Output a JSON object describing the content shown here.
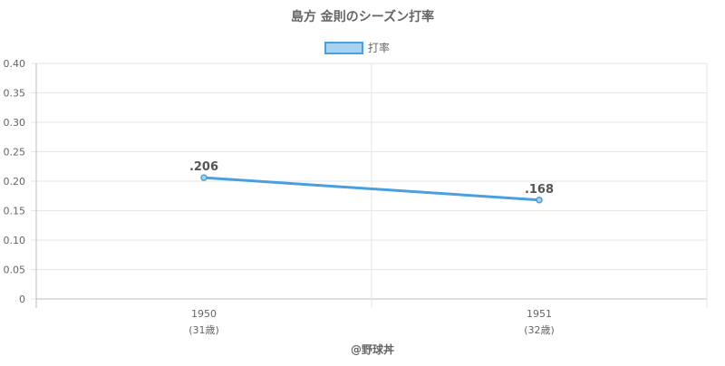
{
  "chart_data": {
    "type": "line",
    "title": "島方 金則のシーズン打率",
    "legend": {
      "position": "top",
      "label": "打率"
    },
    "categories": [
      "1950",
      "1951"
    ],
    "category_sublabels": [
      "(31歳)",
      "(32歳)"
    ],
    "series": [
      {
        "name": "打率",
        "values": [
          0.206,
          0.168
        ],
        "data_labels": [
          ".206",
          ".168"
        ]
      }
    ],
    "y_ticks": [
      "0.40",
      "0.35",
      "0.30",
      "0.25",
      "0.20",
      "0.15",
      "0.10",
      "0.05",
      "0"
    ],
    "ylim": [
      0,
      0.4
    ],
    "grid": true,
    "footer": "@野球丼",
    "colors": {
      "line": "#4a9fe0",
      "point_fill": "#a8d2f2",
      "legend_fill": "#a8d2f2",
      "grid": "#e6e6e6",
      "axis": "#bdbdbd",
      "text": "#666666",
      "title": "#666666",
      "data_label": "#555555"
    }
  }
}
